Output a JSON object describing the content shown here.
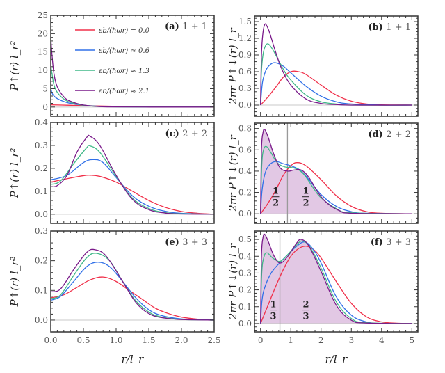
{
  "chart_data": [
    {
      "id": "a",
      "type": "line",
      "panel_label": "(a)",
      "system": "1 + 1",
      "xlabel": "",
      "ylabel": "P↑(r) l_r²",
      "xlim": [
        0,
        2.5
      ],
      "ylim": [
        -2.5,
        25
      ],
      "xticks": [
        0.0,
        0.5,
        1.0,
        1.5,
        2.0,
        2.5
      ],
      "xtick_labels": [],
      "yticks": [
        0,
        5,
        10,
        15,
        20,
        25
      ],
      "ytick_labels": [
        "0",
        "5",
        "10",
        "15",
        "20",
        "25"
      ],
      "zero_line": true,
      "legend": true,
      "series": [
        {
          "name": "εb/(ħωr) = 0.0",
          "color": "#f0304a",
          "x": [
            0,
            0.25,
            0.5,
            0.75,
            1.0,
            1.25,
            1.5,
            2.0,
            2.5
          ],
          "y": [
            0.6,
            0.5,
            0.4,
            0.3,
            0.2,
            0.11,
            0.05,
            0.01,
            0
          ]
        },
        {
          "name": "εb/(ħωr) ≈ 0.6",
          "color": "#3070e8",
          "x": [
            0,
            0.02,
            0.05,
            0.1,
            0.2,
            0.3,
            0.5,
            0.75,
            1.0,
            1.5,
            2.0,
            2.5
          ],
          "y": [
            5.2,
            3.8,
            3.0,
            2.3,
            1.5,
            1.0,
            0.5,
            0.2,
            0.1,
            0.02,
            0.005,
            0
          ]
        },
        {
          "name": "εb/(ħωr) ≈ 1.3",
          "color": "#40b888",
          "x": [
            0,
            0.02,
            0.05,
            0.1,
            0.2,
            0.3,
            0.5,
            0.75,
            1.0,
            1.5,
            2.0,
            2.5
          ],
          "y": [
            11.5,
            9.0,
            6.0,
            4.0,
            2.2,
            1.3,
            0.5,
            0.15,
            0.05,
            0.01,
            0,
            0
          ]
        },
        {
          "name": "εb/(ħωr) ≈ 2.1",
          "color": "#7a1a8a",
          "x": [
            0,
            0.02,
            0.05,
            0.1,
            0.2,
            0.3,
            0.5,
            0.75,
            1.0,
            1.5,
            2.0,
            2.5
          ],
          "y": [
            19.0,
            14.0,
            9.0,
            5.5,
            2.8,
            1.6,
            0.55,
            0.12,
            0.03,
            0.005,
            0,
            0
          ]
        }
      ]
    },
    {
      "id": "b",
      "type": "line",
      "panel_label": "(b)",
      "system": "1 + 1",
      "xlabel": "",
      "ylabel": "2πr P↑↓(r) l_r",
      "xlim": [
        -0.2,
        5.2
      ],
      "ylim": [
        -0.2,
        1.6
      ],
      "xticks": [
        0,
        1,
        2,
        3,
        4,
        5
      ],
      "xtick_labels": [],
      "yticks": [
        0.0,
        0.3,
        0.6,
        0.9,
        1.2,
        1.5
      ],
      "ytick_labels": [
        "0.0",
        "0.3",
        "0.6",
        "0.9",
        "1.2",
        "1.5"
      ],
      "zero_line": true,
      "series": [
        {
          "name": "εb/(ħωr) = 0.0",
          "color": "#f0304a",
          "x": [
            0,
            0.25,
            0.5,
            0.75,
            1.0,
            1.25,
            1.5,
            2.0,
            2.5,
            3.0,
            3.5,
            4.0,
            5.0
          ],
          "y": [
            0,
            0.15,
            0.32,
            0.5,
            0.6,
            0.6,
            0.55,
            0.36,
            0.18,
            0.07,
            0.02,
            0.005,
            0
          ]
        },
        {
          "name": "εb/(ħωr) ≈ 0.6",
          "color": "#3070e8",
          "x": [
            0,
            0.05,
            0.1,
            0.2,
            0.35,
            0.5,
            0.75,
            1.0,
            1.5,
            2.0,
            2.5,
            3.0,
            4.0,
            5.0
          ],
          "y": [
            0,
            0.35,
            0.5,
            0.65,
            0.74,
            0.76,
            0.7,
            0.58,
            0.34,
            0.16,
            0.06,
            0.02,
            0,
            0
          ]
        },
        {
          "name": "εb/(ħωr) ≈ 1.3",
          "color": "#40b888",
          "x": [
            0,
            0.03,
            0.08,
            0.15,
            0.25,
            0.4,
            0.6,
            0.8,
            1.0,
            1.5,
            2.0,
            2.5,
            3.0,
            5.0
          ],
          "y": [
            0,
            0.6,
            0.9,
            1.05,
            1.1,
            1.0,
            0.8,
            0.6,
            0.45,
            0.18,
            0.06,
            0.02,
            0,
            0
          ]
        },
        {
          "name": "εb/(ħωr) ≈ 2.1",
          "color": "#7a1a8a",
          "x": [
            0,
            0.03,
            0.08,
            0.14,
            0.2,
            0.3,
            0.5,
            0.7,
            1.0,
            1.5,
            2.0,
            2.5,
            3.0,
            5.0
          ],
          "y": [
            0,
            0.9,
            1.3,
            1.45,
            1.43,
            1.3,
            0.95,
            0.65,
            0.36,
            0.11,
            0.03,
            0.01,
            0,
            0
          ]
        }
      ]
    },
    {
      "id": "c",
      "type": "line",
      "panel_label": "(c)",
      "system": "2 + 2",
      "xlabel": "",
      "ylabel": "P↑(r) l_r²",
      "xlim": [
        0,
        2.5
      ],
      "ylim": [
        -0.04,
        0.4
      ],
      "xticks": [
        0.0,
        0.5,
        1.0,
        1.5,
        2.0,
        2.5
      ],
      "xtick_labels": [],
      "yticks": [
        0.0,
        0.1,
        0.2,
        0.3,
        0.4
      ],
      "ytick_labels": [
        "0.0",
        "0.1",
        "0.2",
        "0.3",
        "0.4"
      ],
      "zero_line": true,
      "series": [
        {
          "name": "εb/(ħωr) = 0.0",
          "color": "#f0304a",
          "x": [
            0,
            0.25,
            0.5,
            0.6,
            0.75,
            1.0,
            1.25,
            1.5,
            1.75,
            2.0,
            2.25,
            2.5
          ],
          "y": [
            0.14,
            0.155,
            0.168,
            0.17,
            0.165,
            0.14,
            0.1,
            0.06,
            0.03,
            0.012,
            0.004,
            0
          ]
        },
        {
          "name": "εb/(ħωr) ≈ 0.6",
          "color": "#3070e8",
          "x": [
            0,
            0.25,
            0.5,
            0.65,
            0.8,
            1.0,
            1.25,
            1.5,
            1.75,
            2.0,
            2.5
          ],
          "y": [
            0.15,
            0.17,
            0.225,
            0.238,
            0.225,
            0.16,
            0.08,
            0.035,
            0.013,
            0.004,
            0
          ]
        },
        {
          "name": "εb/(ħωr) ≈ 1.3",
          "color": "#40b888",
          "x": [
            0,
            0.15,
            0.35,
            0.55,
            0.6,
            0.75,
            1.0,
            1.25,
            1.5,
            1.75,
            2.0,
            2.5
          ],
          "y": [
            0.13,
            0.145,
            0.22,
            0.29,
            0.298,
            0.27,
            0.165,
            0.07,
            0.025,
            0.007,
            0.002,
            0
          ]
        },
        {
          "name": "εb/(ħωr) ≈ 2.1",
          "color": "#7a1a8a",
          "x": [
            0,
            0.1,
            0.25,
            0.4,
            0.55,
            0.6,
            0.75,
            1.0,
            1.25,
            1.5,
            1.75,
            2.0,
            2.5
          ],
          "y": [
            0.12,
            0.125,
            0.17,
            0.27,
            0.335,
            0.34,
            0.3,
            0.17,
            0.065,
            0.02,
            0.005,
            0.001,
            0
          ]
        }
      ]
    },
    {
      "id": "d",
      "type": "area",
      "panel_label": "(d)",
      "system": "2 + 2",
      "xlabel": "",
      "ylabel": "2πr P↑↓(r) l_r",
      "xlim": [
        -0.2,
        5.2
      ],
      "ylim": [
        -0.09,
        0.85
      ],
      "xticks": [
        0,
        1,
        2,
        3,
        4,
        5
      ],
      "xtick_labels": [],
      "yticks": [
        0.0,
        0.2,
        0.4,
        0.6,
        0.8
      ],
      "ytick_labels": [
        "0.0",
        "0.2",
        "0.4",
        "0.6",
        "0.8"
      ],
      "zero_line": true,
      "vline_x": 0.89,
      "fill_under": "εb/(ħωr) ≈ 2.1",
      "fill_color": "#e2c8e4",
      "annotations": [
        {
          "numerator": "1",
          "denominator": "2",
          "x": 0.5,
          "y": 0.16
        },
        {
          "numerator": "1",
          "denominator": "2",
          "x": 1.5,
          "y": 0.16
        }
      ],
      "series": [
        {
          "name": "εb/(ħωr) = 0.0",
          "color": "#f0304a",
          "x": [
            0,
            0.25,
            0.5,
            0.75,
            1.0,
            1.2,
            1.5,
            2.0,
            2.5,
            3.0,
            3.5,
            4.0,
            5.0
          ],
          "y": [
            0,
            0.1,
            0.22,
            0.36,
            0.45,
            0.48,
            0.45,
            0.32,
            0.17,
            0.07,
            0.02,
            0.005,
            0
          ]
        },
        {
          "name": "εb/(ħωr) ≈ 0.6",
          "color": "#3070e8",
          "x": [
            0,
            0.05,
            0.15,
            0.3,
            0.5,
            0.75,
            1.0,
            1.3,
            1.6,
            2.0,
            2.5,
            3.0,
            3.5,
            5.0
          ],
          "y": [
            0,
            0.22,
            0.38,
            0.46,
            0.49,
            0.47,
            0.45,
            0.41,
            0.32,
            0.18,
            0.07,
            0.02,
            0.005,
            0
          ]
        },
        {
          "name": "εb/(ħωr) ≈ 1.3",
          "color": "#40b888",
          "x": [
            0,
            0.04,
            0.1,
            0.2,
            0.35,
            0.55,
            0.8,
            1.1,
            1.4,
            1.75,
            2.0,
            2.5,
            3.0,
            5.0
          ],
          "y": [
            0,
            0.45,
            0.6,
            0.63,
            0.57,
            0.48,
            0.44,
            0.43,
            0.38,
            0.24,
            0.15,
            0.05,
            0.01,
            0
          ]
        },
        {
          "name": "εb/(ħωr) ≈ 2.1",
          "color": "#7a1a8a",
          "x": [
            0,
            0.03,
            0.08,
            0.14,
            0.25,
            0.45,
            0.65,
            0.9,
            1.1,
            1.35,
            1.6,
            1.9,
            2.2,
            2.6,
            3.0,
            5.0
          ],
          "y": [
            0,
            0.6,
            0.76,
            0.79,
            0.72,
            0.55,
            0.43,
            0.4,
            0.41,
            0.41,
            0.34,
            0.2,
            0.1,
            0.03,
            0.005,
            0
          ]
        }
      ]
    },
    {
      "id": "e",
      "type": "line",
      "panel_label": "(e)",
      "system": "3 + 3",
      "xlabel": "r/l_r",
      "ylabel": "P↑(r) l_r²",
      "xlim": [
        0,
        2.5
      ],
      "ylim": [
        -0.04,
        0.3
      ],
      "xticks": [
        0.0,
        0.5,
        1.0,
        1.5,
        2.0,
        2.5
      ],
      "xtick_labels": [
        "0.0",
        "0.5",
        "1.0",
        "1.5",
        "2.0",
        "2.5"
      ],
      "yticks": [
        0.0,
        0.1,
        0.2,
        0.3
      ],
      "ytick_labels": [
        "0.0",
        "0.1",
        "0.2",
        "0.3"
      ],
      "zero_line": true,
      "series": [
        {
          "name": "εb/(ħωr) = 0.0",
          "color": "#f0304a",
          "x": [
            0,
            0.2,
            0.4,
            0.6,
            0.8,
            1.0,
            1.2,
            1.4,
            1.6,
            1.8,
            2.0,
            2.25,
            2.5
          ],
          "y": [
            0.075,
            0.085,
            0.11,
            0.135,
            0.145,
            0.13,
            0.1,
            0.07,
            0.04,
            0.022,
            0.01,
            0.003,
            0
          ]
        },
        {
          "name": "εb/(ħωr) ≈ 0.6",
          "color": "#3070e8",
          "x": [
            0,
            0.15,
            0.35,
            0.55,
            0.72,
            0.9,
            1.1,
            1.3,
            1.5,
            1.7,
            2.0,
            2.5
          ],
          "y": [
            0.067,
            0.08,
            0.13,
            0.18,
            0.195,
            0.18,
            0.13,
            0.075,
            0.035,
            0.015,
            0.004,
            0
          ]
        },
        {
          "name": "εb/(ħωr) ≈ 1.3",
          "color": "#40b888",
          "x": [
            0,
            0.15,
            0.35,
            0.55,
            0.7,
            0.9,
            1.1,
            1.3,
            1.5,
            1.7,
            2.0,
            2.5
          ],
          "y": [
            0.072,
            0.085,
            0.15,
            0.21,
            0.225,
            0.2,
            0.13,
            0.065,
            0.027,
            0.01,
            0.002,
            0
          ]
        },
        {
          "name": "εb/(ħωr) ≈ 2.1",
          "color": "#7a1a8a",
          "x": [
            0,
            0.15,
            0.35,
            0.55,
            0.68,
            0.85,
            1.1,
            1.3,
            1.5,
            1.7,
            2.0,
            2.5
          ],
          "y": [
            0.095,
            0.105,
            0.17,
            0.228,
            0.237,
            0.215,
            0.13,
            0.06,
            0.022,
            0.008,
            0.002,
            0
          ]
        }
      ]
    },
    {
      "id": "f",
      "type": "area",
      "panel_label": "(f)",
      "system": "3 + 3",
      "xlabel": "r/l_r",
      "ylabel": "2πr P↑↓(r) l_r",
      "xlim": [
        -0.2,
        5.2
      ],
      "ylim": [
        -0.05,
        0.55
      ],
      "xticks": [
        0,
        1,
        2,
        3,
        4,
        5
      ],
      "xtick_labels": [
        "0",
        "1",
        "2",
        "3",
        "4",
        "5"
      ],
      "yticks": [
        0.0,
        0.1,
        0.2,
        0.3,
        0.4,
        0.5
      ],
      "ytick_labels": [
        "0.0",
        "0.1",
        "0.2",
        "0.3",
        "0.4",
        "0.5"
      ],
      "zero_line": true,
      "vline_x": 0.64,
      "fill_under": "εb/(ħωr) ≈ 2.1",
      "fill_color": "#e2c8e4",
      "annotations": [
        {
          "numerator": "1",
          "denominator": "3",
          "x": 0.42,
          "y": 0.08
        },
        {
          "numerator": "2",
          "denominator": "3",
          "x": 1.5,
          "y": 0.08
        }
      ],
      "series": [
        {
          "name": "εb/(ħωr) = 0.0",
          "color": "#f0304a",
          "x": [
            0,
            0.25,
            0.5,
            0.75,
            1.0,
            1.25,
            1.5,
            1.75,
            2.0,
            2.5,
            3.0,
            3.5,
            4.0,
            4.5,
            5.0
          ],
          "y": [
            0,
            0.11,
            0.22,
            0.32,
            0.4,
            0.445,
            0.46,
            0.44,
            0.39,
            0.25,
            0.12,
            0.04,
            0.01,
            0.002,
            0
          ]
        },
        {
          "name": "εb/(ħωr) ≈ 0.6",
          "color": "#3070e8",
          "x": [
            0,
            0.05,
            0.15,
            0.35,
            0.6,
            0.9,
            1.2,
            1.45,
            1.7,
            2.0,
            2.5,
            3.0,
            3.5,
            4.0,
            5.0
          ],
          "y": [
            0,
            0.14,
            0.22,
            0.3,
            0.355,
            0.41,
            0.46,
            0.485,
            0.45,
            0.36,
            0.16,
            0.05,
            0.01,
            0,
            0
          ]
        },
        {
          "name": "εb/(ħωr) ≈ 1.3",
          "color": "#40b888",
          "x": [
            0,
            0.04,
            0.12,
            0.22,
            0.4,
            0.65,
            0.9,
            1.2,
            1.4,
            1.65,
            2.0,
            2.5,
            3.0,
            3.5,
            5.0
          ],
          "y": [
            0,
            0.3,
            0.4,
            0.42,
            0.39,
            0.37,
            0.41,
            0.47,
            0.49,
            0.45,
            0.33,
            0.13,
            0.03,
            0.005,
            0
          ]
        },
        {
          "name": "εb/(ħωr) ≈ 2.1",
          "color": "#7a1a8a",
          "x": [
            0,
            0.03,
            0.08,
            0.14,
            0.25,
            0.45,
            0.65,
            0.9,
            1.2,
            1.35,
            1.6,
            2.0,
            2.5,
            3.0,
            3.5,
            5.0
          ],
          "y": [
            0,
            0.4,
            0.51,
            0.53,
            0.49,
            0.4,
            0.36,
            0.4,
            0.48,
            0.5,
            0.46,
            0.31,
            0.11,
            0.02,
            0.003,
            0
          ]
        }
      ]
    }
  ],
  "legend": {
    "entries": [
      {
        "label": "εb/(ħωr) = 0.0",
        "color": "#f0304a"
      },
      {
        "label": "εb/(ħωr) ≈ 0.6",
        "color": "#3070e8"
      },
      {
        "label": "εb/(ħωr) ≈ 1.3",
        "color": "#40b888"
      },
      {
        "label": "εb/(ħωr) ≈ 2.1",
        "color": "#7a1a8a"
      }
    ]
  },
  "shared": {
    "xlabel_left": "r/l_r",
    "xlabel_right": "r/l_r"
  }
}
